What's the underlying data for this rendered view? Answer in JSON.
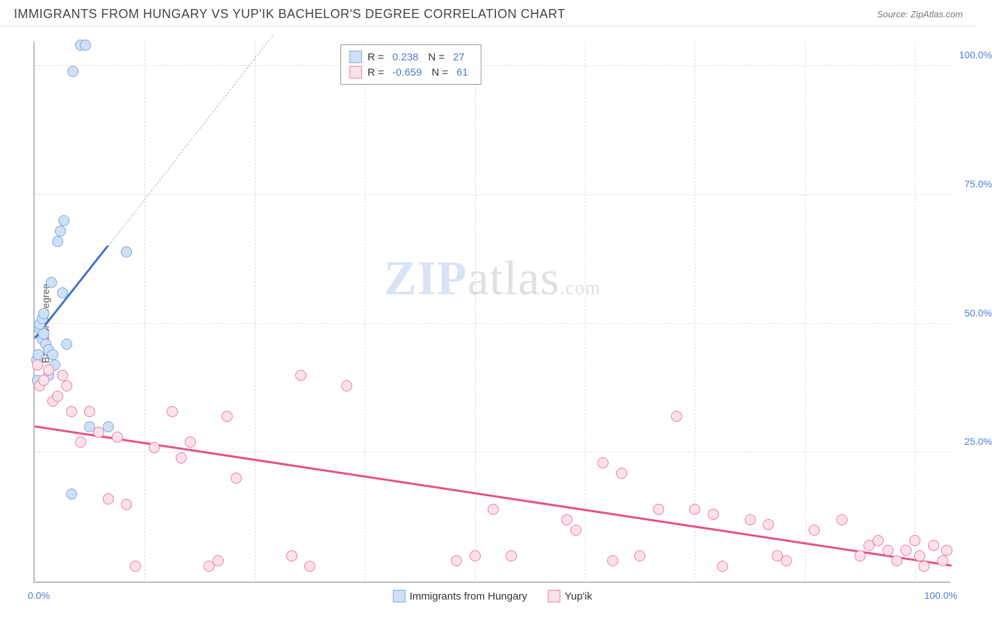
{
  "header": {
    "title": "IMMIGRANTS FROM HUNGARY VS YUP'IK BACHELOR'S DEGREE CORRELATION CHART",
    "source_label": "Source:",
    "source_value": "ZipAtlas.com"
  },
  "chart": {
    "type": "scatter",
    "ylabel": "Bachelor's Degree",
    "xlim": [
      0,
      100
    ],
    "ylim": [
      0,
      105
    ],
    "xtick_labels": [
      "0.0%",
      "100.0%"
    ],
    "ytick_values": [
      25,
      50,
      75,
      100
    ],
    "ytick_labels": [
      "25.0%",
      "50.0%",
      "75.0%",
      "100.0%"
    ],
    "vgrid_values": [
      12,
      24,
      36,
      48,
      60,
      72,
      84,
      96
    ],
    "background_color": "#ffffff",
    "grid_color": "#dcdcdc",
    "axis_color": "#bdbdbd",
    "tick_label_color": "#4a7bd0",
    "watermark": {
      "zip": "ZIP",
      "rest": "atlas",
      "suffix": ".com"
    },
    "series": [
      {
        "name": "Immigrants from Hungary",
        "color_fill": "#cfe0f5",
        "color_stroke": "#7fa8df",
        "R": "0.238",
        "N": "27",
        "trend": {
          "x1": 0,
          "y1": 47,
          "x2": 8,
          "y2": 65,
          "color": "#3d6fd1",
          "width": 3
        },
        "extrapolate": {
          "x1": 8,
          "y1": 65,
          "x2": 26,
          "y2": 106,
          "color": "#9bb9e6"
        },
        "points": [
          [
            0.2,
            43
          ],
          [
            0.4,
            44
          ],
          [
            0.5,
            49
          ],
          [
            0.5,
            50
          ],
          [
            0.8,
            47
          ],
          [
            0.8,
            51
          ],
          [
            1.0,
            48
          ],
          [
            1.2,
            46
          ],
          [
            1.5,
            45
          ],
          [
            1.5,
            40
          ],
          [
            1.8,
            58
          ],
          [
            2.0,
            44
          ],
          [
            2.2,
            42
          ],
          [
            2.5,
            66
          ],
          [
            2.8,
            68
          ],
          [
            3.0,
            56
          ],
          [
            3.2,
            70
          ],
          [
            3.5,
            46
          ],
          [
            4.0,
            17
          ],
          [
            4.2,
            99
          ],
          [
            5.0,
            104
          ],
          [
            5.5,
            104
          ],
          [
            6.0,
            30
          ],
          [
            8.0,
            30
          ],
          [
            10.0,
            64
          ],
          [
            0.3,
            39
          ],
          [
            1.0,
            52
          ]
        ]
      },
      {
        "name": "Yup'ik",
        "color_fill": "#fce1e9",
        "color_stroke": "#ec7ba3",
        "R": "-0.659",
        "N": "61",
        "trend": {
          "x1": 0,
          "y1": 30,
          "x2": 100,
          "y2": 3,
          "color": "#e94d87",
          "width": 2.5
        },
        "points": [
          [
            0.3,
            42
          ],
          [
            0.5,
            38
          ],
          [
            1,
            39
          ],
          [
            1.5,
            41
          ],
          [
            2,
            35
          ],
          [
            2.5,
            36
          ],
          [
            3,
            40
          ],
          [
            3.5,
            38
          ],
          [
            4,
            33
          ],
          [
            5,
            27
          ],
          [
            6,
            33
          ],
          [
            7,
            29
          ],
          [
            8,
            16
          ],
          [
            9,
            28
          ],
          [
            10,
            15
          ],
          [
            11,
            3
          ],
          [
            13,
            26
          ],
          [
            15,
            33
          ],
          [
            16,
            24
          ],
          [
            17,
            27
          ],
          [
            19,
            3
          ],
          [
            20,
            4
          ],
          [
            21,
            32
          ],
          [
            22,
            20
          ],
          [
            28,
            5
          ],
          [
            29,
            40
          ],
          [
            30,
            3
          ],
          [
            34,
            38
          ],
          [
            46,
            4
          ],
          [
            48,
            5
          ],
          [
            50,
            14
          ],
          [
            52,
            5
          ],
          [
            58,
            12
          ],
          [
            59,
            10
          ],
          [
            62,
            23
          ],
          [
            63,
            4
          ],
          [
            64,
            21
          ],
          [
            66,
            5
          ],
          [
            68,
            14
          ],
          [
            70,
            32
          ],
          [
            72,
            14
          ],
          [
            74,
            13
          ],
          [
            75,
            3
          ],
          [
            78,
            12
          ],
          [
            80,
            11
          ],
          [
            81,
            5
          ],
          [
            82,
            4
          ],
          [
            85,
            10
          ],
          [
            88,
            12
          ],
          [
            90,
            5
          ],
          [
            91,
            7
          ],
          [
            92,
            8
          ],
          [
            93,
            6
          ],
          [
            94,
            4
          ],
          [
            95,
            6
          ],
          [
            96,
            8
          ],
          [
            96.5,
            5
          ],
          [
            97,
            3
          ],
          [
            98,
            7
          ],
          [
            99,
            4
          ],
          [
            99.5,
            6
          ]
        ]
      }
    ],
    "legend_labels": {
      "R_prefix": "R =",
      "N_prefix": "N ="
    },
    "bottom_legend": [
      {
        "label": "Immigrants from Hungary",
        "fill": "#cfe0f5",
        "stroke": "#7fa8df"
      },
      {
        "label": "Yup'ik",
        "fill": "#fce1e9",
        "stroke": "#ec7ba3"
      }
    ]
  }
}
